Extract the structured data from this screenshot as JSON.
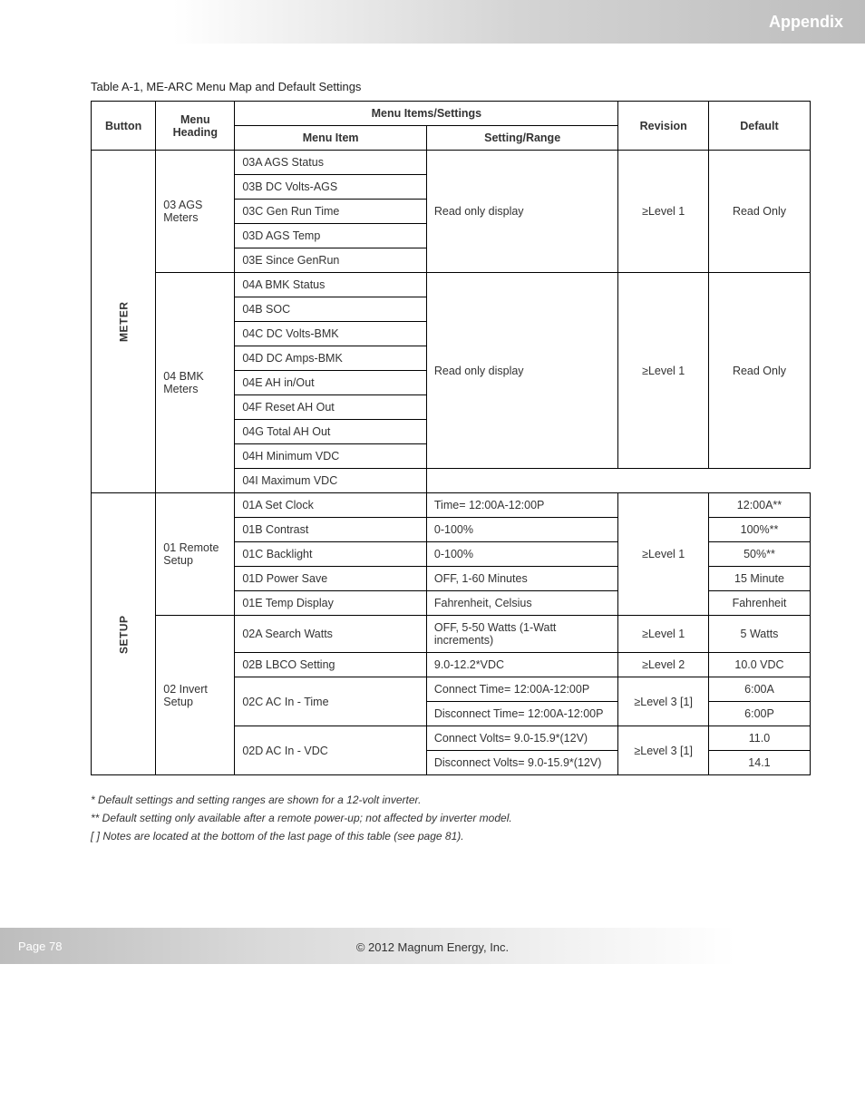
{
  "top_banner_text": "Appendix",
  "table_title": "Table A-1, ME-ARC Menu Map and Default Settings",
  "headers": {
    "button": "Button",
    "menu": "Menu Heading",
    "items_settings": "Menu Items/Settings",
    "menu_item": "Menu Item",
    "setting_range": "Setting/Range",
    "revision": "Revision",
    "default": "Default"
  },
  "meter_label": "METER",
  "setup_label": "SETUP",
  "section_ags": {
    "menu": "03 AGS Meters",
    "items": [
      "03A AGS Status",
      "03B DC Volts-AGS",
      "03C Gen Run Time",
      "03D AGS Temp",
      "03E Since GenRun"
    ],
    "range": "Read only display",
    "revision": "≥Level 1",
    "default": "Read Only"
  },
  "section_bmk": {
    "menu": "04 BMK Meters",
    "items": [
      "04A BMK Status",
      "04B SOC",
      "04C DC Volts-BMK",
      "04D DC Amps-BMK",
      "04E AH in/Out",
      "04F Reset AH Out",
      "04G Total AH Out",
      "04H Minimum VDC",
      "04I Maximum VDC"
    ],
    "range": "Read only display",
    "revision": "≥Level 1",
    "default": "Read Only"
  },
  "section_remote": {
    "menu": "01 Remote Setup",
    "revision": "≥Level 1",
    "rows": [
      {
        "item": "01A Set Clock",
        "range": "Time= 12:00A-12:00P",
        "default": "12:00A**"
      },
      {
        "item": "01B Contrast",
        "range": "0-100%",
        "default": "100%**"
      },
      {
        "item": "01C Backlight",
        "range": "0-100%",
        "default": "50%**"
      },
      {
        "item": "01D Power Save",
        "range": "OFF, 1-60 Minutes",
        "default": "15 Minute"
      },
      {
        "item": "01E Temp Display",
        "range": "Fahrenheit, Celsius",
        "default": "Fahrenheit"
      }
    ]
  },
  "section_invert": {
    "menu": "02 Invert Setup",
    "rows": [
      {
        "item": "02A Search Watts",
        "range": "OFF, 5-50 Watts (1-Watt increments)",
        "revision": "≥Level 1",
        "default": "5 Watts"
      },
      {
        "item": "02B LBCO Setting",
        "range": "9.0-12.2*VDC",
        "revision": "≥Level 2",
        "default": "10.0 VDC"
      }
    ],
    "acin_time": {
      "item": "02C AC In - Time",
      "range1": "Connect Time= 12:00A-12:00P",
      "range2": "Disconnect Time= 12:00A-12:00P",
      "revision": "≥Level 3 [1]",
      "default1": "6:00A",
      "default2": "6:00P"
    },
    "acin_vdc": {
      "item": "02D AC In - VDC",
      "range1": "Connect Volts= 9.0-15.9*(12V)",
      "range2": "Disconnect Volts= 9.0-15.9*(12V)",
      "revision": "≥Level 3 [1]",
      "default1": "11.0",
      "default2": "14.1"
    }
  },
  "footnotes": [
    "* Default settings and setting ranges are shown for a 12-volt inverter.",
    "** Default setting only available after a remote power-up; not affected by inverter model.",
    "[ ] Notes are located at the bottom of the last page of this table (see page 81)."
  ],
  "bottom_banner_text": "Page 78",
  "copyright": "© 2012 Magnum Energy, Inc."
}
